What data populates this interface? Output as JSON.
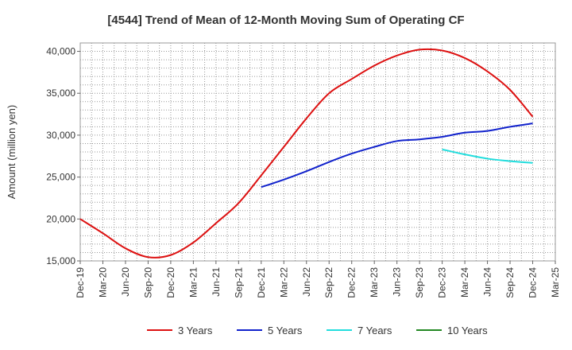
{
  "chart_data": {
    "type": "line",
    "title": "[4544]  Trend of Mean of 12-Month Moving Sum of Operating CF",
    "xlabel": "",
    "ylabel": "Amount (million yen)",
    "ylim": [
      15000,
      41000
    ],
    "yticks": [
      15000,
      20000,
      25000,
      30000,
      35000,
      40000
    ],
    "ytick_labels": [
      "15,000",
      "20,000",
      "25,000",
      "30,000",
      "35,000",
      "40,000"
    ],
    "categories": [
      "Dec-19",
      "Mar-20",
      "Jun-20",
      "Sep-20",
      "Dec-20",
      "Mar-21",
      "Jun-21",
      "Sep-21",
      "Dec-21",
      "Mar-22",
      "Jun-22",
      "Sep-22",
      "Dec-22",
      "Mar-23",
      "Jun-23",
      "Sep-23",
      "Dec-23",
      "Mar-24",
      "Jun-24",
      "Sep-24",
      "Dec-24",
      "Mar-25"
    ],
    "grid": true,
    "legend_position": "bottom",
    "series": [
      {
        "name": "3 Years",
        "color": "#dd1111",
        "values": [
          20000,
          18300,
          16500,
          15450,
          15700,
          17200,
          19500,
          21900,
          25200,
          28600,
          32000,
          35000,
          36700,
          38300,
          39500,
          40200,
          40100,
          39200,
          37600,
          35400,
          32200,
          null
        ]
      },
      {
        "name": "5 Years",
        "color": "#1122cc",
        "values": [
          null,
          null,
          null,
          null,
          null,
          null,
          null,
          null,
          23800,
          24700,
          25700,
          26800,
          27800,
          28600,
          29300,
          29500,
          29800,
          30300,
          30500,
          31000,
          31400,
          null
        ]
      },
      {
        "name": "7 Years",
        "color": "#22dddd",
        "values": [
          null,
          null,
          null,
          null,
          null,
          null,
          null,
          null,
          null,
          null,
          null,
          null,
          null,
          null,
          null,
          null,
          28300,
          27700,
          27200,
          26900,
          26700,
          null
        ]
      },
      {
        "name": "10 Years",
        "color": "#228822",
        "values": [
          null,
          null,
          null,
          null,
          null,
          null,
          null,
          null,
          null,
          null,
          null,
          null,
          null,
          null,
          null,
          null,
          null,
          null,
          null,
          null,
          null,
          null
        ]
      }
    ]
  }
}
